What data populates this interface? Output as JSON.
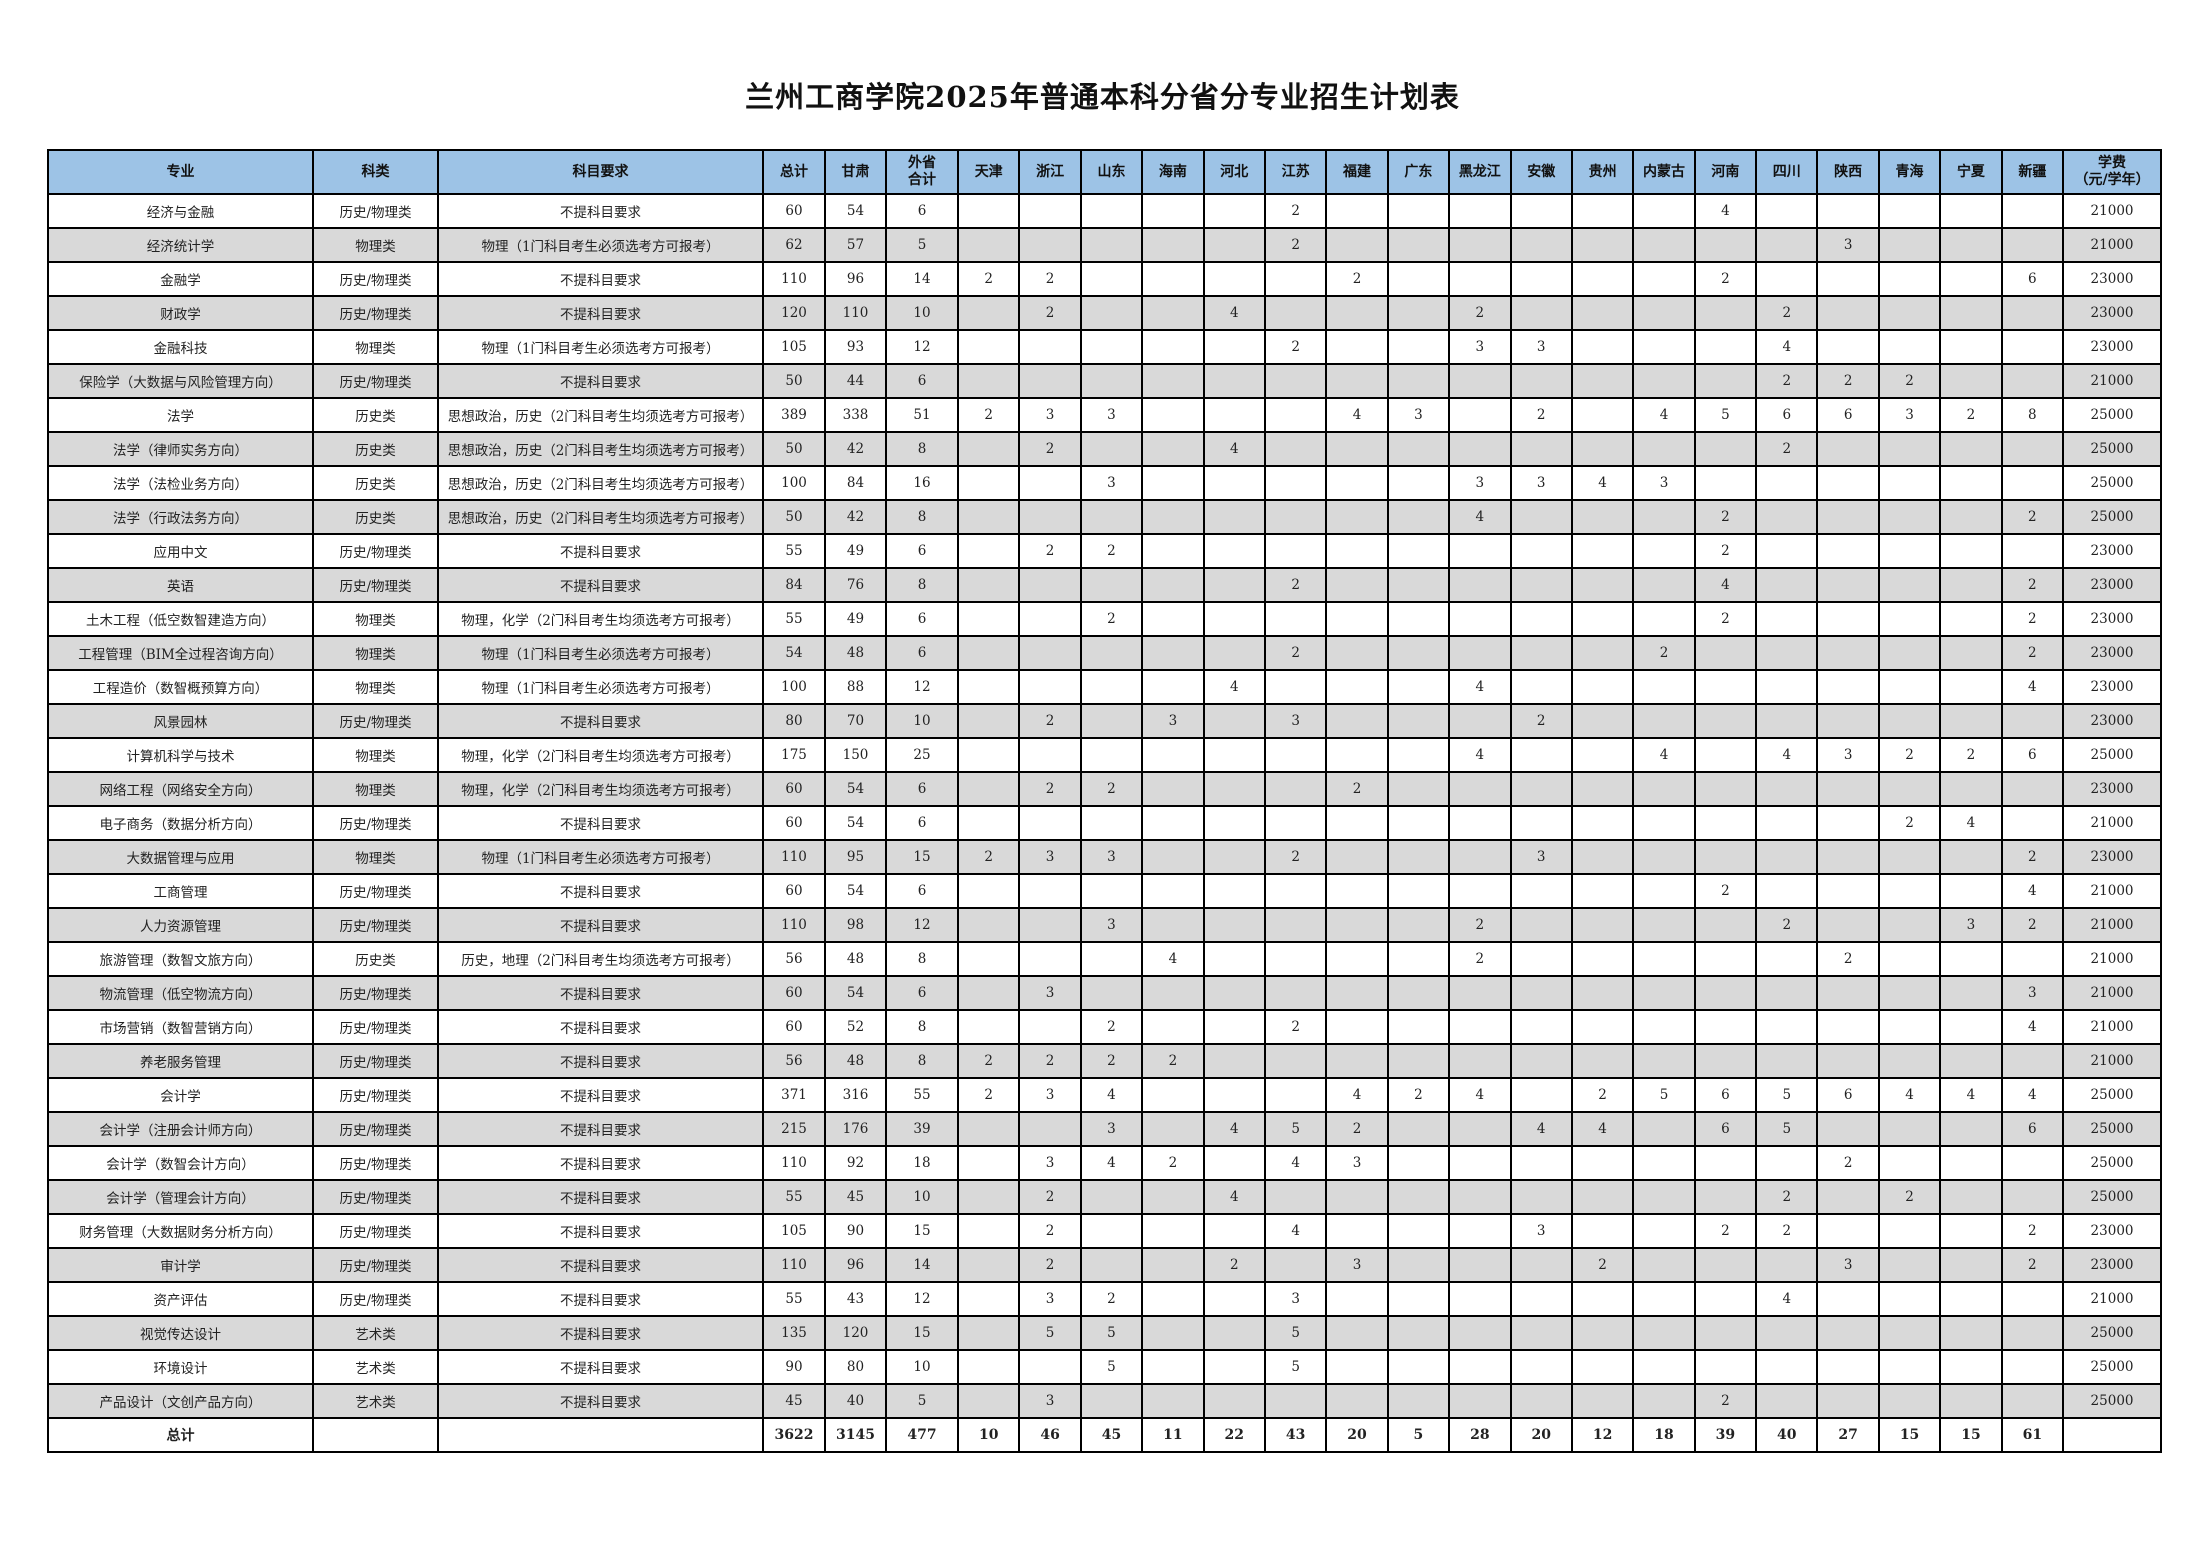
{
  "title": "兰州工商学院2025年普通本科分省分专业招生计划表",
  "table": {
    "headers": [
      "专业",
      "科类",
      "科目要求",
      "总计",
      "甘肃",
      "外省\n合计",
      "天津",
      "浙江",
      "山东",
      "海南",
      "河北",
      "江苏",
      "福建",
      "广东",
      "黑龙江",
      "安徽",
      "贵州",
      "内蒙古",
      "河南",
      "四川",
      "陕西",
      "青海",
      "宁夏",
      "新疆",
      "学费\n（元/学年）"
    ],
    "rows": [
      [
        "经济与金融",
        "历史/物理类",
        "不提科目要求",
        "60",
        "54",
        "6",
        "",
        "",
        "",
        "",
        "",
        "2",
        "",
        "",
        "",
        "",
        "",
        "",
        "4",
        "",
        "",
        "",
        "",
        "",
        "21000"
      ],
      [
        "经济统计学",
        "物理类",
        "物理（1门科目考生必须选考方可报考）",
        "62",
        "57",
        "5",
        "",
        "",
        "",
        "",
        "",
        "2",
        "",
        "",
        "",
        "",
        "",
        "",
        "",
        "",
        "3",
        "",
        "",
        "",
        "21000"
      ],
      [
        "金融学",
        "历史/物理类",
        "不提科目要求",
        "110",
        "96",
        "14",
        "2",
        "2",
        "",
        "",
        "",
        "",
        "2",
        "",
        "",
        "",
        "",
        "",
        "2",
        "",
        "",
        "",
        "",
        "6",
        "23000"
      ],
      [
        "财政学",
        "历史/物理类",
        "不提科目要求",
        "120",
        "110",
        "10",
        "",
        "2",
        "",
        "",
        "4",
        "",
        "",
        "",
        "2",
        "",
        "",
        "",
        "",
        "2",
        "",
        "",
        "",
        "",
        "23000"
      ],
      [
        "金融科技",
        "物理类",
        "物理（1门科目考生必须选考方可报考）",
        "105",
        "93",
        "12",
        "",
        "",
        "",
        "",
        "",
        "2",
        "",
        "",
        "3",
        "3",
        "",
        "",
        "",
        "4",
        "",
        "",
        "",
        "",
        "23000"
      ],
      [
        "保险学（大数据与风险管理方向）",
        "历史/物理类",
        "不提科目要求",
        "50",
        "44",
        "6",
        "",
        "",
        "",
        "",
        "",
        "",
        "",
        "",
        "",
        "",
        "",
        "",
        "",
        "2",
        "2",
        "2",
        "",
        "",
        "21000"
      ],
      [
        "法学",
        "历史类",
        "思想政治，历史（2门科目考生均须选考方可报考）",
        "389",
        "338",
        "51",
        "2",
        "3",
        "3",
        "",
        "",
        "",
        "4",
        "3",
        "",
        "2",
        "",
        "4",
        "5",
        "6",
        "6",
        "3",
        "2",
        "8",
        "25000"
      ],
      [
        "法学（律师实务方向）",
        "历史类",
        "思想政治，历史（2门科目考生均须选考方可报考）",
        "50",
        "42",
        "8",
        "",
        "2",
        "",
        "",
        "4",
        "",
        "",
        "",
        "",
        "",
        "",
        "",
        "",
        "2",
        "",
        "",
        "",
        "",
        "25000"
      ],
      [
        "法学（法检业务方向）",
        "历史类",
        "思想政治，历史（2门科目考生均须选考方可报考）",
        "100",
        "84",
        "16",
        "",
        "",
        "3",
        "",
        "",
        "",
        "",
        "",
        "3",
        "3",
        "4",
        "3",
        "",
        "",
        "",
        "",
        "",
        "",
        "25000"
      ],
      [
        "法学（行政法务方向）",
        "历史类",
        "思想政治，历史（2门科目考生均须选考方可报考）",
        "50",
        "42",
        "8",
        "",
        "",
        "",
        "",
        "",
        "",
        "",
        "",
        "4",
        "",
        "",
        "",
        "2",
        "",
        "",
        "",
        "",
        "2",
        "25000"
      ],
      [
        "应用中文",
        "历史/物理类",
        "不提科目要求",
        "55",
        "49",
        "6",
        "",
        "2",
        "2",
        "",
        "",
        "",
        "",
        "",
        "",
        "",
        "",
        "",
        "2",
        "",
        "",
        "",
        "",
        "",
        "23000"
      ],
      [
        "英语",
        "历史/物理类",
        "不提科目要求",
        "84",
        "76",
        "8",
        "",
        "",
        "",
        "",
        "",
        "2",
        "",
        "",
        "",
        "",
        "",
        "",
        "4",
        "",
        "",
        "",
        "",
        "2",
        "23000"
      ],
      [
        "土木工程（低空数智建造方向）",
        "物理类",
        "物理，化学（2门科目考生均须选考方可报考）",
        "55",
        "49",
        "6",
        "",
        "",
        "2",
        "",
        "",
        "",
        "",
        "",
        "",
        "",
        "",
        "",
        "2",
        "",
        "",
        "",
        "",
        "2",
        "23000"
      ],
      [
        "工程管理（BIM全过程咨询方向）",
        "物理类",
        "物理（1门科目考生必须选考方可报考）",
        "54",
        "48",
        "6",
        "",
        "",
        "",
        "",
        "",
        "2",
        "",
        "",
        "",
        "",
        "",
        "2",
        "",
        "",
        "",
        "",
        "",
        "2",
        "23000"
      ],
      [
        "工程造价（数智概预算方向）",
        "物理类",
        "物理（1门科目考生必须选考方可报考）",
        "100",
        "88",
        "12",
        "",
        "",
        "",
        "",
        "4",
        "",
        "",
        "",
        "4",
        "",
        "",
        "",
        "",
        "",
        "",
        "",
        "",
        "4",
        "23000"
      ],
      [
        "风景园林",
        "历史/物理类",
        "不提科目要求",
        "80",
        "70",
        "10",
        "",
        "2",
        "",
        "3",
        "",
        "3",
        "",
        "",
        "",
        "2",
        "",
        "",
        "",
        "",
        "",
        "",
        "",
        "",
        "23000"
      ],
      [
        "计算机科学与技术",
        "物理类",
        "物理，化学（2门科目考生均须选考方可报考）",
        "175",
        "150",
        "25",
        "",
        "",
        "",
        "",
        "",
        "",
        "",
        "",
        "4",
        "",
        "",
        "4",
        "",
        "4",
        "3",
        "2",
        "2",
        "6",
        "25000"
      ],
      [
        "网络工程（网络安全方向）",
        "物理类",
        "物理，化学（2门科目考生均须选考方可报考）",
        "60",
        "54",
        "6",
        "",
        "2",
        "2",
        "",
        "",
        "",
        "2",
        "",
        "",
        "",
        "",
        "",
        "",
        "",
        "",
        "",
        "",
        "",
        "23000"
      ],
      [
        "电子商务（数据分析方向）",
        "历史/物理类",
        "不提科目要求",
        "60",
        "54",
        "6",
        "",
        "",
        "",
        "",
        "",
        "",
        "",
        "",
        "",
        "",
        "",
        "",
        "",
        "",
        "",
        "2",
        "4",
        "",
        "21000"
      ],
      [
        "大数据管理与应用",
        "物理类",
        "物理（1门科目考生必须选考方可报考）",
        "110",
        "95",
        "15",
        "2",
        "3",
        "3",
        "",
        "",
        "2",
        "",
        "",
        "",
        "3",
        "",
        "",
        "",
        "",
        "",
        "",
        "",
        "2",
        "23000"
      ],
      [
        "工商管理",
        "历史/物理类",
        "不提科目要求",
        "60",
        "54",
        "6",
        "",
        "",
        "",
        "",
        "",
        "",
        "",
        "",
        "",
        "",
        "",
        "",
        "2",
        "",
        "",
        "",
        "",
        "4",
        "21000"
      ],
      [
        "人力资源管理",
        "历史/物理类",
        "不提科目要求",
        "110",
        "98",
        "12",
        "",
        "",
        "3",
        "",
        "",
        "",
        "",
        "",
        "2",
        "",
        "",
        "",
        "",
        "2",
        "",
        "",
        "3",
        "2",
        "21000"
      ],
      [
        "旅游管理（数智文旅方向）",
        "历史类",
        "历史，地理（2门科目考生均须选考方可报考）",
        "56",
        "48",
        "8",
        "",
        "",
        "",
        "4",
        "",
        "",
        "",
        "",
        "2",
        "",
        "",
        "",
        "",
        "",
        "2",
        "",
        "",
        "",
        "21000"
      ],
      [
        "物流管理（低空物流方向）",
        "历史/物理类",
        "不提科目要求",
        "60",
        "54",
        "6",
        "",
        "3",
        "",
        "",
        "",
        "",
        "",
        "",
        "",
        "",
        "",
        "",
        "",
        "",
        "",
        "",
        "",
        "3",
        "21000"
      ],
      [
        "市场营销（数智营销方向）",
        "历史/物理类",
        "不提科目要求",
        "60",
        "52",
        "8",
        "",
        "",
        "2",
        "",
        "",
        "2",
        "",
        "",
        "",
        "",
        "",
        "",
        "",
        "",
        "",
        "",
        "",
        "4",
        "21000"
      ],
      [
        "养老服务管理",
        "历史/物理类",
        "不提科目要求",
        "56",
        "48",
        "8",
        "2",
        "2",
        "2",
        "2",
        "",
        "",
        "",
        "",
        "",
        "",
        "",
        "",
        "",
        "",
        "",
        "",
        "",
        "",
        "21000"
      ],
      [
        "会计学",
        "历史/物理类",
        "不提科目要求",
        "371",
        "316",
        "55",
        "2",
        "3",
        "4",
        "",
        "",
        "",
        "4",
        "2",
        "4",
        "",
        "2",
        "5",
        "6",
        "5",
        "6",
        "4",
        "4",
        "4",
        "25000"
      ],
      [
        "会计学（注册会计师方向）",
        "历史/物理类",
        "不提科目要求",
        "215",
        "176",
        "39",
        "",
        "",
        "3",
        "",
        "4",
        "5",
        "2",
        "",
        "",
        "4",
        "4",
        "",
        "6",
        "5",
        "",
        "",
        "",
        "6",
        "25000"
      ],
      [
        "会计学（数智会计方向）",
        "历史/物理类",
        "不提科目要求",
        "110",
        "92",
        "18",
        "",
        "3",
        "4",
        "2",
        "",
        "4",
        "3",
        "",
        "",
        "",
        "",
        "",
        "",
        "",
        "2",
        "",
        "",
        "",
        "25000"
      ],
      [
        "会计学（管理会计方向）",
        "历史/物理类",
        "不提科目要求",
        "55",
        "45",
        "10",
        "",
        "2",
        "",
        "",
        "4",
        "",
        "",
        "",
        "",
        "",
        "",
        "",
        "",
        "2",
        "",
        "2",
        "",
        "",
        "25000"
      ],
      [
        "财务管理（大数据财务分析方向）",
        "历史/物理类",
        "不提科目要求",
        "105",
        "90",
        "15",
        "",
        "2",
        "",
        "",
        "",
        "4",
        "",
        "",
        "",
        "3",
        "",
        "",
        "2",
        "2",
        "",
        "",
        "",
        "2",
        "23000"
      ],
      [
        "审计学",
        "历史/物理类",
        "不提科目要求",
        "110",
        "96",
        "14",
        "",
        "2",
        "",
        "",
        "2",
        "",
        "3",
        "",
        "",
        "",
        "2",
        "",
        "",
        "",
        "3",
        "",
        "",
        "2",
        "23000"
      ],
      [
        "资产评估",
        "历史/物理类",
        "不提科目要求",
        "55",
        "43",
        "12",
        "",
        "3",
        "2",
        "",
        "",
        "3",
        "",
        "",
        "",
        "",
        "",
        "",
        "",
        "4",
        "",
        "",
        "",
        "",
        "21000"
      ],
      [
        "视觉传达设计",
        "艺术类",
        "不提科目要求",
        "135",
        "120",
        "15",
        "",
        "5",
        "5",
        "",
        "",
        "5",
        "",
        "",
        "",
        "",
        "",
        "",
        "",
        "",
        "",
        "",
        "",
        "",
        "25000"
      ],
      [
        "环境设计",
        "艺术类",
        "不提科目要求",
        "90",
        "80",
        "10",
        "",
        "",
        "5",
        "",
        "",
        "5",
        "",
        "",
        "",
        "",
        "",
        "",
        "",
        "",
        "",
        "",
        "",
        "",
        "25000"
      ],
      [
        "产品设计（文创产品方向）",
        "艺术类",
        "不提科目要求",
        "45",
        "40",
        "5",
        "",
        "3",
        "",
        "",
        "",
        "",
        "",
        "",
        "",
        "",
        "",
        "",
        "2",
        "",
        "",
        "",
        "",
        "",
        "25000"
      ]
    ],
    "total": [
      "总计",
      "",
      "",
      "3622",
      "3145",
      "477",
      "10",
      "46",
      "45",
      "11",
      "22",
      "43",
      "20",
      "5",
      "28",
      "20",
      "12",
      "18",
      "39",
      "40",
      "27",
      "15",
      "15",
      "61",
      ""
    ]
  },
  "colors": {
    "header_bg": "#9dc3e6",
    "stripe_bg": "#d9d9d9",
    "border": "#000000"
  }
}
